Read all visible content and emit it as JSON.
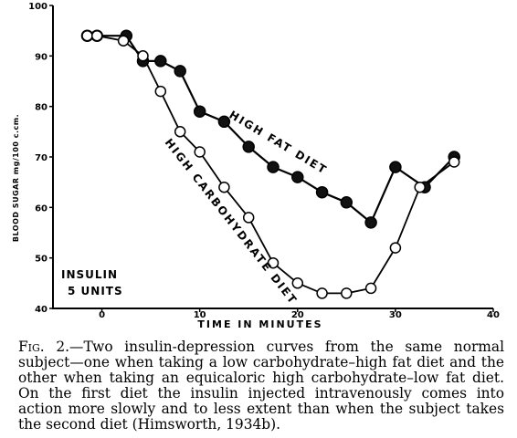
{
  "chart_data": {
    "type": "line",
    "xlabel": "TIME IN MINUTES",
    "ylabel": "BLOOD SUGAR mg/100 c.cm.",
    "xlim": [
      -5,
      40
    ],
    "ylim": [
      40,
      100
    ],
    "x_ticks": [
      "0",
      "10",
      "20",
      "30",
      "40"
    ],
    "y_ticks": [
      "40",
      "50",
      "60",
      "70",
      "80",
      "90",
      "100"
    ],
    "grid": false,
    "annotation": [
      "INSULIN",
      "5 UNITS"
    ],
    "series": [
      {
        "name": "HIGH FAT DIET",
        "marker": "filled-circle",
        "x": [
          -1.5,
          -0.5,
          2.5,
          4.2,
          6,
          8,
          10,
          12.5,
          15,
          17.5,
          20,
          22.5,
          25,
          27.5,
          30,
          33,
          36
        ],
        "y": [
          94,
          94,
          94,
          89,
          89,
          87,
          79,
          77,
          72,
          68,
          66,
          63,
          61,
          57,
          68,
          64,
          70
        ]
      },
      {
        "name": "HIGH CARBOHYDRATE DIET",
        "marker": "open-circle",
        "x": [
          -1.5,
          -0.5,
          2.2,
          4.2,
          6,
          8,
          10,
          12.5,
          15,
          17.5,
          20,
          22.5,
          25,
          27.5,
          30,
          32.5,
          36
        ],
        "y": [
          94,
          94,
          93,
          90,
          83,
          75,
          71,
          64,
          58,
          49,
          45,
          43,
          43,
          44,
          52,
          64,
          69
        ]
      }
    ]
  },
  "caption": {
    "fig_label": "Fig. 2.",
    "text": "—Two insulin-depression curves from the same normal subject—one when taking a low carbohydrate–high fat diet and the other when taking an equicaloric high carbohydrate–low fat diet.  On the first diet the insulin injected intravenously comes into action more slowly and to less extent than when the subject takes the second diet (Himsworth, 1934b)."
  }
}
